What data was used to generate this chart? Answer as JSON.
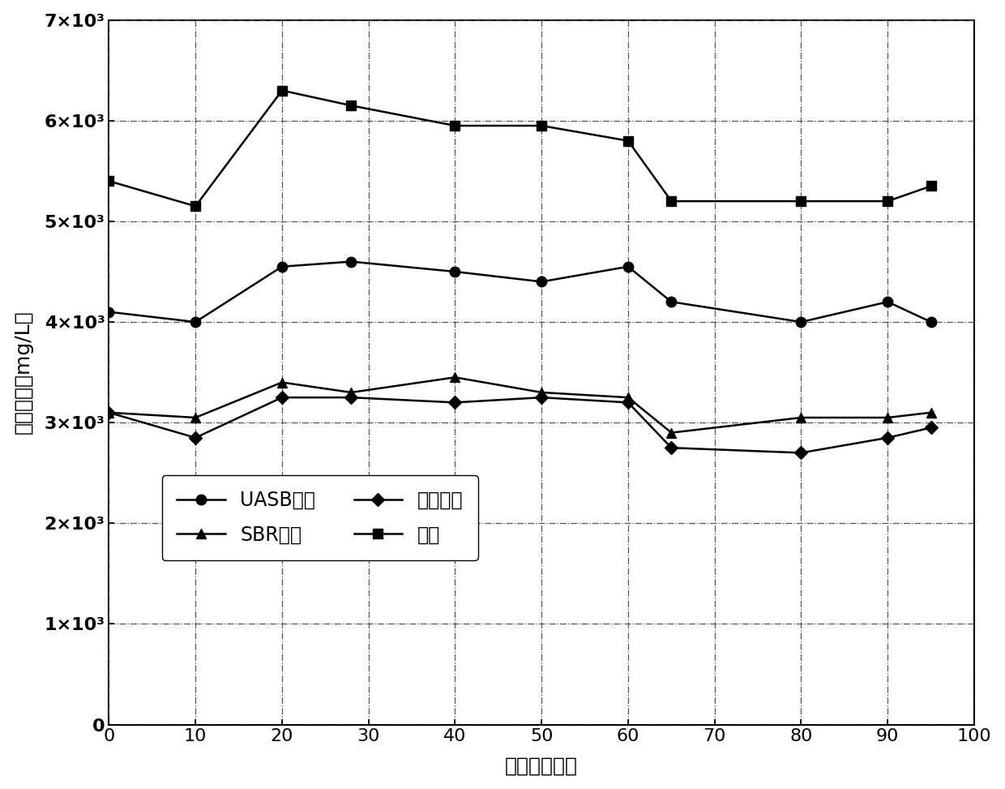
{
  "x": [
    0,
    10,
    20,
    28,
    40,
    50,
    60,
    65,
    80,
    90,
    95
  ],
  "yuanye": [
    5400,
    5150,
    6300,
    6150,
    5950,
    5950,
    5800,
    5200,
    5200,
    5200,
    5350
  ],
  "uasb": [
    4100,
    4000,
    4550,
    4600,
    4500,
    4400,
    4550,
    4200,
    4000,
    4200,
    4000
  ],
  "sbr": [
    3100,
    3050,
    3400,
    3300,
    3450,
    3300,
    3250,
    2900,
    3050,
    3050,
    3100
  ],
  "xitong": [
    3100,
    2850,
    3250,
    3250,
    3200,
    3250,
    3200,
    2750,
    2700,
    2850,
    2950
  ],
  "xlabel": "时间／（天）",
  "ylabel": "硫酸盐／（mg/L）",
  "ylim": [
    0,
    7000
  ],
  "xlim": [
    0,
    100
  ],
  "ytick_vals": [
    0,
    1000,
    2000,
    3000,
    4000,
    5000,
    6000,
    7000
  ],
  "ytick_labels": [
    "0",
    "1×10³",
    "2×10³",
    "3×10³",
    "4×10³",
    "5×10³",
    "6×10³",
    "7×10³"
  ],
  "xticks": [
    0,
    10,
    20,
    30,
    40,
    50,
    60,
    70,
    80,
    90,
    100
  ],
  "legend_uasb": "UASB出水",
  "legend_sbr": "SBR出水",
  "legend_xitong": "系统出水",
  "legend_yuanye": "原液",
  "line_color": "#000000",
  "bg_color": "#ffffff",
  "grid_color": "#555555"
}
